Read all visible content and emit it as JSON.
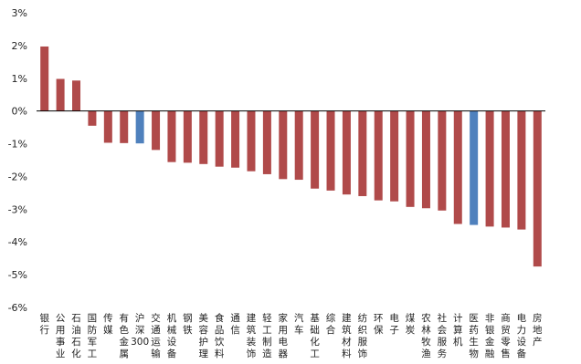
{
  "chart_data": {
    "type": "bar",
    "title": "",
    "xlabel": "",
    "ylabel": "",
    "ylim": [
      -6,
      3
    ],
    "yticks": [
      "3%",
      "2%",
      "1%",
      "0%",
      "-1%",
      "-2%",
      "-3%",
      "-4%",
      "-5%",
      "-6%"
    ],
    "ytick_values": [
      3,
      2,
      1,
      0,
      -1,
      -2,
      -3,
      -4,
      -5,
      -6
    ],
    "grid": false,
    "legend": "none",
    "colors": {
      "default": "#b04a4a",
      "highlight": "#4f81bd",
      "axis": "#000000"
    },
    "highlighted": [
      "沪深300",
      "医药生物"
    ],
    "categories": [
      "银行",
      "公用事业",
      "石油石化",
      "国防军工",
      "传媒",
      "有色金属",
      "沪深300",
      "交通运输",
      "机械设备",
      "钢铁",
      "美容护理",
      "食品饮料",
      "通信",
      "建筑装饰",
      "轻工制造",
      "家用电器",
      "汽车",
      "基础化工",
      "综合",
      "建筑材料",
      "纺织服饰",
      "环保",
      "电子",
      "煤炭",
      "农林牧渔",
      "社会服务",
      "计算机",
      "医药生物",
      "非银金融",
      "商贸零售",
      "电力设备",
      "房地产"
    ],
    "values": [
      1.97,
      0.98,
      0.93,
      -0.45,
      -0.97,
      -0.98,
      -0.99,
      -1.19,
      -1.56,
      -1.58,
      -1.62,
      -1.7,
      -1.73,
      -1.84,
      -1.93,
      -2.08,
      -2.1,
      -2.37,
      -2.43,
      -2.55,
      -2.6,
      -2.73,
      -2.76,
      -2.93,
      -2.97,
      -3.04,
      -3.45,
      -3.48,
      -3.53,
      -3.56,
      -3.62,
      -4.75
    ]
  }
}
